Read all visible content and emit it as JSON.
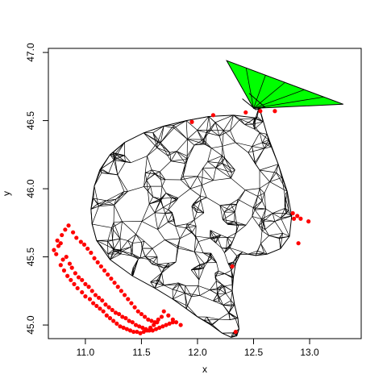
{
  "chart_data": {
    "type": "scatter",
    "xlabel": "x",
    "ylabel": "y",
    "xlim": [
      10.67,
      13.46
    ],
    "ylim": [
      44.9,
      47.03
    ],
    "xticks": [
      "11.0",
      "11.5",
      "12.0",
      "12.5",
      "13.0"
    ],
    "yticks": [
      "45.0",
      "45.5",
      "46.0",
      "46.5",
      "47.0"
    ],
    "grid": false,
    "legend": "none",
    "colors": {
      "points": "#ff0000",
      "mesh": "#000000",
      "highlight": "#00ff00"
    },
    "series": [
      {
        "kind": "points",
        "x": [
          10.72,
          10.74,
          10.76,
          10.78,
          10.8,
          10.83,
          10.86,
          10.88,
          10.91,
          10.94,
          10.97,
          11.0,
          11.03,
          11.06,
          11.09,
          11.12,
          11.15,
          11.18,
          11.21,
          11.24,
          11.27,
          11.3,
          11.33,
          11.36,
          11.39,
          11.42,
          11.45,
          11.48,
          11.51,
          11.54,
          11.57,
          11.6,
          11.63,
          11.66,
          11.69,
          11.72,
          11.75,
          11.78,
          11.81,
          11.85,
          10.75,
          10.79,
          10.82,
          10.85,
          10.89,
          10.92,
          10.96,
          10.99,
          11.02,
          11.05,
          11.08,
          11.11,
          11.14,
          11.17,
          11.2,
          11.23,
          11.26,
          11.29,
          11.32,
          11.35,
          11.38,
          11.41,
          11.44,
          11.47,
          11.5,
          11.53,
          11.56,
          11.59,
          11.62,
          11.65,
          11.68,
          10.78,
          10.81,
          10.84,
          10.87,
          10.9,
          10.93,
          10.97,
          11.0,
          11.04,
          11.07,
          11.1,
          11.13,
          11.16,
          11.19,
          11.22,
          11.25,
          11.28,
          11.31,
          11.34,
          11.37,
          11.4,
          11.43,
          11.46,
          11.49,
          11.52,
          11.55,
          11.58,
          11.61,
          11.64,
          11.7,
          11.74,
          11.78,
          11.95,
          12.14,
          12.43,
          12.56,
          12.69,
          12.85,
          12.86,
          12.89,
          12.92,
          12.99,
          12.9,
          12.31,
          12.34
        ],
        "y": [
          45.55,
          45.52,
          45.58,
          45.6,
          45.48,
          45.5,
          45.45,
          45.42,
          45.38,
          45.35,
          45.33,
          45.3,
          45.28,
          45.25,
          45.22,
          45.2,
          45.18,
          45.15,
          45.13,
          45.11,
          45.09,
          45.08,
          45.06,
          45.05,
          45.03,
          45.02,
          45.0,
          44.99,
          44.98,
          44.97,
          44.96,
          44.96,
          44.97,
          44.98,
          44.99,
          45.0,
          45.01,
          45.02,
          45.02,
          45.0,
          45.62,
          45.66,
          45.7,
          45.73,
          45.68,
          45.64,
          45.61,
          45.59,
          45.56,
          45.53,
          45.49,
          45.46,
          45.43,
          45.4,
          45.37,
          45.34,
          45.31,
          45.28,
          45.25,
          45.22,
          45.19,
          45.16,
          45.13,
          45.1,
          45.08,
          45.06,
          45.04,
          45.03,
          45.02,
          45.04,
          45.06,
          45.44,
          45.4,
          45.36,
          45.33,
          45.3,
          45.27,
          45.24,
          45.21,
          45.19,
          45.16,
          45.14,
          45.12,
          45.1,
          45.07,
          45.05,
          45.03,
          45.01,
          44.99,
          44.98,
          44.97,
          44.96,
          44.95,
          44.95,
          44.94,
          44.95,
          44.96,
          44.98,
          45.0,
          45.02,
          45.1,
          45.07,
          45.04,
          46.49,
          46.54,
          46.56,
          46.57,
          46.57,
          45.82,
          45.78,
          45.8,
          45.78,
          45.76,
          45.6,
          45.43,
          44.95
        ]
      },
      {
        "kind": "mesh-region",
        "outline_x": [
          11.05,
          11.08,
          11.13,
          11.22,
          11.35,
          11.52,
          11.7,
          11.9,
          12.1,
          12.32,
          12.52,
          12.55,
          12.62,
          12.72,
          12.8,
          12.84,
          12.82,
          12.74,
          12.62,
          12.52,
          12.45,
          12.38,
          12.34,
          12.32,
          12.31,
          12.33,
          12.36,
          12.37,
          12.35,
          12.3,
          12.22,
          12.12,
          12.0,
          11.9,
          11.78,
          11.62,
          11.42,
          11.22,
          11.1,
          11.06,
          11.05
        ],
        "outline_y": [
          45.85,
          46.02,
          46.14,
          46.25,
          46.34,
          46.41,
          46.46,
          46.5,
          46.53,
          46.54,
          46.52,
          46.6,
          46.4,
          46.18,
          45.98,
          45.8,
          45.65,
          45.56,
          45.52,
          45.51,
          45.52,
          45.52,
          45.45,
          45.35,
          45.25,
          45.15,
          45.05,
          44.97,
          44.92,
          44.91,
          44.94,
          45.0,
          45.06,
          45.12,
          45.19,
          45.27,
          45.36,
          45.48,
          45.62,
          45.74,
          45.85
        ]
      },
      {
        "kind": "green-triangle",
        "x": [
          12.26,
          13.3,
          12.5
        ],
        "y": [
          46.94,
          46.62,
          46.59
        ]
      }
    ]
  }
}
